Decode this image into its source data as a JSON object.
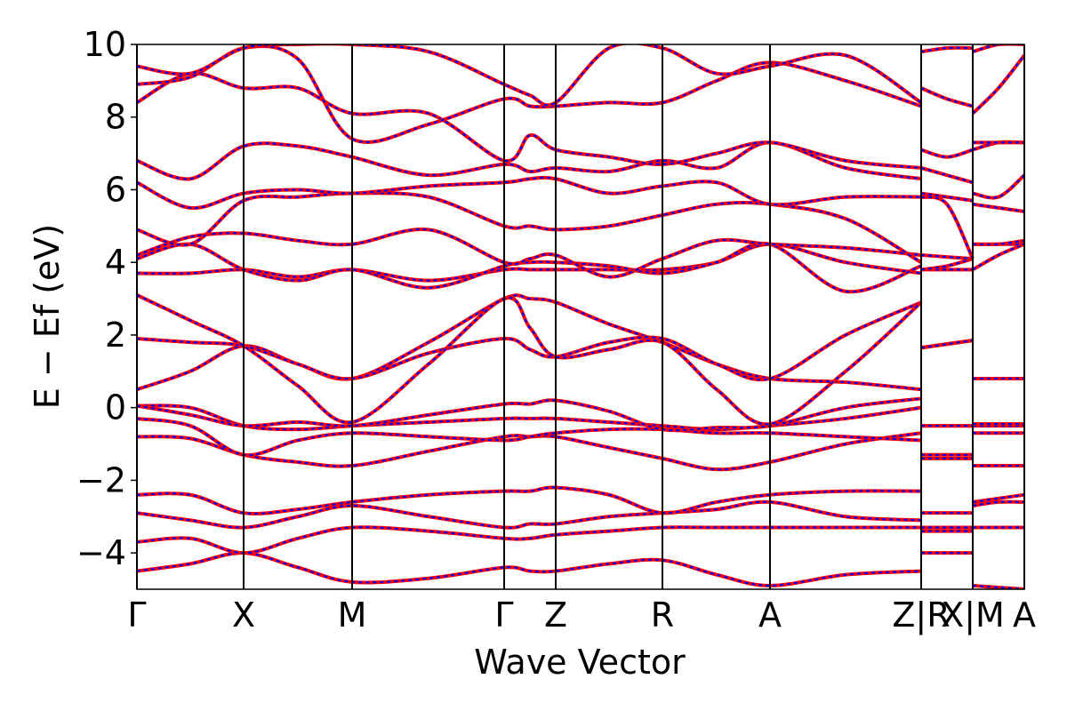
{
  "chart_data": {
    "type": "line",
    "xlabel": "Wave Vector",
    "ylabel": "E − Ef (eV)",
    "x": [
      0,
      0.6,
      1.2,
      1.81,
      2.42,
      3.28,
      4.13,
      4.42,
      4.71,
      5.31,
      5.91,
      6.52,
      7.12,
      7.97,
      8.82,
      8.82,
      8.82,
      9.11,
      9.4,
      9.4,
      9.4,
      9.69,
      9.98
    ],
    "xlim": [
      0,
      9.98
    ],
    "xticks": [
      {
        "value": 0,
        "label": "Γ"
      },
      {
        "value": 1.2,
        "label": "X"
      },
      {
        "value": 2.42,
        "label": "M"
      },
      {
        "value": 4.13,
        "label": "Γ"
      },
      {
        "value": 4.71,
        "label": "Z"
      },
      {
        "value": 5.91,
        "label": "R"
      },
      {
        "value": 7.12,
        "label": "A"
      },
      {
        "value": 8.82,
        "label": "Z|R"
      },
      {
        "value": 9.4,
        "label": "X|M"
      },
      {
        "value": 9.98,
        "label": "A"
      }
    ],
    "ylim": [
      -5,
      10
    ],
    "yticks": [
      {
        "value": -4,
        "label": "−4"
      },
      {
        "value": -2,
        "label": "−2"
      },
      0,
      2,
      4,
      6,
      8,
      10
    ],
    "colors": [
      "#ff0000",
      "#0000ff"
    ],
    "series": [
      {
        "values": [
          -4.5,
          -4.3,
          -4.0,
          -4.4,
          -4.8,
          -4.7,
          -4.4,
          -4.5,
          -4.5,
          -4.3,
          -4.2,
          -4.6,
          -4.9,
          -4.6,
          -4.5,
          null,
          -4.0,
          -4.0,
          -4.0,
          null,
          -4.9,
          -4.95,
          -5.0
        ]
      },
      {
        "values": [
          -3.7,
          -3.6,
          -4.0,
          -3.6,
          -3.3,
          -3.4,
          -3.6,
          -3.6,
          -3.5,
          -3.4,
          -3.3,
          -3.3,
          -3.3,
          -3.3,
          -3.3,
          null,
          -3.4,
          -3.4,
          -3.4,
          null,
          -3.3,
          -3.3,
          -3.3
        ]
      },
      {
        "values": [
          -2.9,
          -3.1,
          -3.3,
          -3.0,
          -2.7,
          -3.0,
          -3.3,
          -3.2,
          -3.2,
          -3.0,
          -2.9,
          -2.8,
          -2.6,
          -3.0,
          -3.1,
          null,
          -3.3,
          -3.3,
          -3.3,
          null,
          -2.7,
          -2.6,
          -2.6
        ]
      },
      {
        "values": [
          -2.4,
          -2.4,
          -2.9,
          -2.8,
          -2.6,
          -2.4,
          -2.3,
          -2.3,
          -2.2,
          -2.4,
          -2.9,
          -2.6,
          -2.4,
          -2.3,
          -2.3,
          null,
          -2.9,
          -2.9,
          -2.9,
          null,
          -2.6,
          -2.5,
          -2.4
        ]
      },
      {
        "values": [
          -0.8,
          -0.85,
          -1.3,
          -1.5,
          -1.6,
          -1.2,
          -0.8,
          -0.8,
          -0.8,
          -1.1,
          -1.4,
          -1.7,
          -1.5,
          -1.0,
          -0.7,
          null,
          -1.4,
          -1.4,
          -1.4,
          null,
          -1.6,
          -1.6,
          -1.6
        ]
      },
      {
        "values": [
          -0.3,
          -0.5,
          -1.3,
          -0.9,
          -0.7,
          -0.8,
          -0.9,
          -0.8,
          -0.7,
          -0.6,
          -0.6,
          -0.7,
          -0.7,
          -0.8,
          -0.9,
          null,
          -1.3,
          -1.3,
          -1.3,
          null,
          -0.7,
          -0.7,
          -0.7
        ]
      },
      {
        "values": [
          0.05,
          0.0,
          -0.5,
          -0.6,
          -0.5,
          -0.4,
          -0.3,
          -0.3,
          -0.3,
          -0.4,
          -0.5,
          -0.6,
          -0.5,
          -0.3,
          0.0,
          null,
          -0.5,
          -0.5,
          -0.5,
          null,
          -0.45,
          -0.45,
          -0.45
        ]
      },
      {
        "values": [
          0.05,
          -0.2,
          -0.5,
          -0.4,
          -0.5,
          -0.2,
          0.1,
          0.1,
          0.2,
          -0.1,
          -0.6,
          -0.55,
          -0.5,
          0.0,
          0.25,
          null,
          -0.5,
          -0.5,
          -0.5,
          null,
          -0.5,
          -0.5,
          -0.5
        ]
      },
      {
        "values": [
          0.5,
          1.0,
          1.7,
          1.2,
          0.8,
          1.8,
          3.0,
          3.0,
          2.9,
          2.3,
          1.8,
          1.2,
          0.8,
          0.7,
          0.5,
          null,
          1.65,
          1.75,
          1.85,
          null,
          0.8,
          0.8,
          0.8
        ]
      },
      {
        "values": [
          1.9,
          1.8,
          1.7,
          1.2,
          0.8,
          1.5,
          1.9,
          1.6,
          1.4,
          1.8,
          1.9,
          1.2,
          0.8,
          2.0,
          2.9,
          null,
          1.65,
          1.75,
          1.85,
          null,
          0.8,
          0.8,
          0.8
        ]
      },
      {
        "values": [
          3.1,
          2.4,
          1.7,
          0.6,
          -0.4,
          1.2,
          3.0,
          2.2,
          1.4,
          1.6,
          1.8,
          0.5,
          -0.45,
          1.0,
          2.9,
          null,
          1.65,
          1.75,
          1.85,
          null,
          -0.45,
          -0.45,
          -0.45
        ]
      },
      {
        "values": [
          3.7,
          3.7,
          3.8,
          3.6,
          3.8,
          3.5,
          3.8,
          3.8,
          3.8,
          3.8,
          3.8,
          4.0,
          4.5,
          4.0,
          3.7,
          null,
          3.8,
          3.8,
          3.8,
          null,
          3.8,
          4.2,
          4.5
        ]
      },
      {
        "values": [
          4.1,
          4.5,
          3.8,
          3.5,
          3.8,
          3.3,
          3.9,
          4.0,
          4.0,
          3.9,
          3.7,
          4.0,
          4.5,
          3.2,
          3.9,
          null,
          3.8,
          3.9,
          4.1,
          null,
          4.5,
          4.5,
          4.5
        ]
      },
      {
        "values": [
          4.2,
          4.7,
          4.8,
          4.6,
          4.5,
          4.9,
          4.0,
          4.1,
          4.2,
          3.6,
          4.1,
          4.6,
          4.5,
          4.4,
          4.2,
          null,
          4.2,
          4.15,
          4.1,
          null,
          4.5,
          4.5,
          4.6
        ]
      },
      {
        "values": [
          4.9,
          4.5,
          5.7,
          5.8,
          5.9,
          5.8,
          5.0,
          5.0,
          4.9,
          5.0,
          5.3,
          5.6,
          5.6,
          5.2,
          4.0,
          null,
          5.8,
          5.6,
          4.1,
          null,
          5.6,
          5.5,
          5.4
        ]
      },
      {
        "values": [
          6.2,
          5.5,
          5.9,
          6.0,
          5.9,
          6.1,
          6.2,
          6.3,
          6.3,
          5.9,
          6.1,
          6.2,
          5.6,
          5.8,
          5.8,
          null,
          5.9,
          5.8,
          5.7,
          null,
          5.9,
          5.8,
          6.4
        ]
      },
      {
        "values": [
          6.8,
          6.3,
          7.2,
          7.2,
          6.9,
          6.4,
          6.7,
          6.5,
          6.6,
          6.5,
          6.8,
          6.6,
          7.3,
          6.6,
          6.3,
          null,
          6.6,
          6.4,
          6.2,
          null,
          7.1,
          7.3,
          7.3
        ]
      },
      {
        "values": [
          8.4,
          9.2,
          8.8,
          8.8,
          8.1,
          8.1,
          6.8,
          7.5,
          7.1,
          6.9,
          6.7,
          7.0,
          7.3,
          6.8,
          6.6,
          null,
          7.1,
          6.9,
          7.1,
          null,
          7.3,
          7.3,
          7.3
        ]
      },
      {
        "values": [
          8.9,
          9.1,
          9.9,
          9.6,
          7.4,
          7.8,
          8.5,
          8.3,
          8.3,
          8.4,
          8.4,
          9.0,
          9.5,
          9.0,
          8.3,
          null,
          8.8,
          8.5,
          8.3,
          null,
          8.1,
          8.8,
          9.7
        ]
      },
      {
        "values": [
          9.4,
          9.2,
          9.9,
          10.0,
          10.0,
          9.8,
          8.9,
          8.6,
          8.4,
          9.9,
          9.9,
          9.2,
          9.4,
          9.7,
          8.4,
          null,
          9.8,
          9.9,
          9.9,
          null,
          9.8,
          10.0,
          10.0
        ]
      }
    ]
  }
}
